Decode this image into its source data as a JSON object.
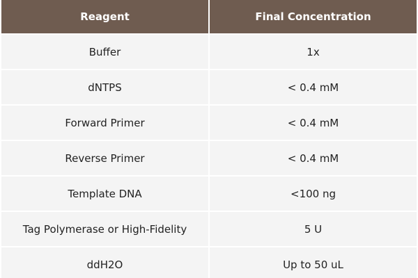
{
  "table": {
    "header": [
      "Reagent",
      "Final Concentration"
    ],
    "rows": [
      [
        "Buffer",
        "1x"
      ],
      [
        "dNTPS",
        "< 0.4 mM"
      ],
      [
        "Forward Primer",
        "< 0.4 mM"
      ],
      [
        "Reverse Primer",
        "< 0.4 mM"
      ],
      [
        "Template DNA",
        "<100 ng"
      ],
      [
        "Tag Polymerase or High-Fidelity",
        "5 U"
      ],
      [
        "ddH2O",
        "Up to 50 uL"
      ]
    ]
  }
}
